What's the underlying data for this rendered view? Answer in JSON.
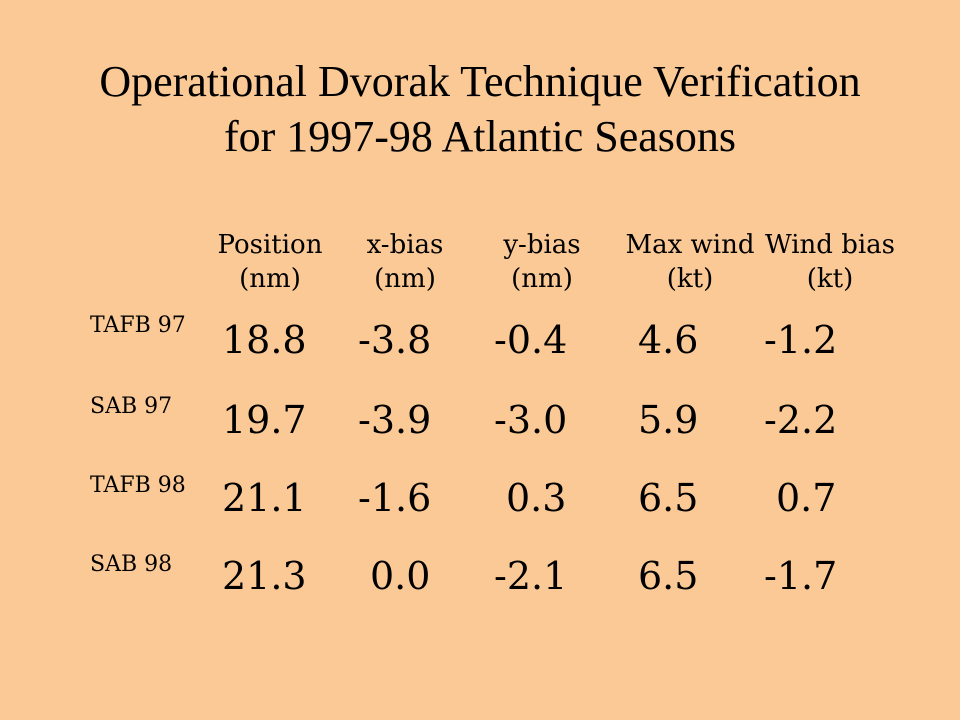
{
  "slide": {
    "title_line1": "Operational Dvorak Technique Verification",
    "title_line2": "for 1997-98 Atlantic Seasons"
  },
  "table": {
    "columns": [
      {
        "name": "Position",
        "unit": "(nm)"
      },
      {
        "name": "x-bias",
        "unit": "(nm)"
      },
      {
        "name": "y-bias",
        "unit": "(nm)"
      },
      {
        "name": "Max wind",
        "unit": "(kt)"
      },
      {
        "name": "Wind bias",
        "unit": "(kt)"
      }
    ],
    "rows": [
      {
        "label": "TAFB 97",
        "values": [
          "18.8",
          "-3.8",
          "-0.4",
          "4.6",
          "-1.2"
        ]
      },
      {
        "label": "SAB 97",
        "values": [
          "19.7",
          "-3.9",
          "-3.0",
          "5.9",
          "-2.2"
        ]
      },
      {
        "label": "TAFB 98",
        "values": [
          "21.1",
          "-1.6",
          "0.3",
          "6.5",
          "0.7"
        ]
      },
      {
        "label": "SAB 98",
        "values": [
          "21.3",
          "0.0",
          "-2.1",
          "6.5",
          "-1.7"
        ]
      }
    ]
  }
}
